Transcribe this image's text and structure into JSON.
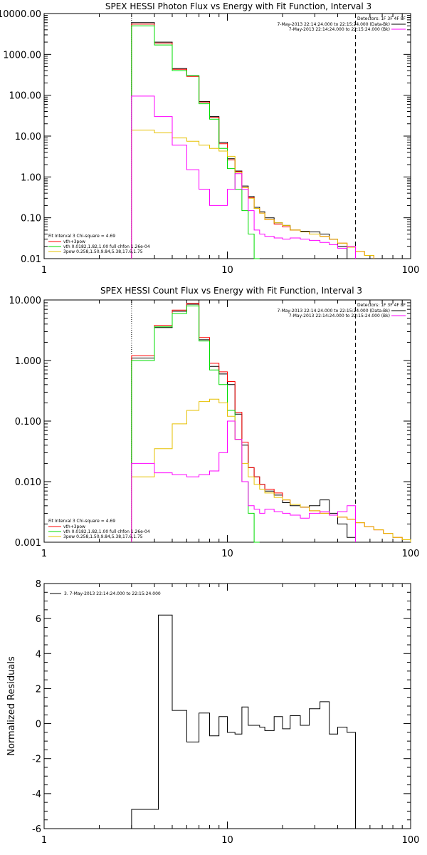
{
  "chart_data": [
    {
      "type": "line",
      "title": "SPEX HESSI Photon Flux vs Energy with Fit Function, Interval 3",
      "xscale": "log",
      "yscale": "log",
      "xlim": [
        1,
        100
      ],
      "ylim": [
        0.01,
        10000
      ],
      "x_ticks": [
        1,
        10,
        100
      ],
      "x_tick_labels": [
        "1",
        "10",
        "100"
      ],
      "y_ticks": [
        0.01,
        0.1,
        1,
        10,
        100,
        1000,
        10000
      ],
      "y_tick_labels": [
        "0.01",
        "0.10",
        "1.00",
        "10.00",
        "100.00",
        "1000.00",
        "10000.00"
      ],
      "legend_right": {
        "header": "Detectors: 1F 3F 4F 8F",
        "entries": [
          {
            "label": "7-May-2013 22:14:24.000 to 22:15:24.000 (Data-Bk)",
            "color": "#000000"
          },
          {
            "label": "7-May-2013 22:14:24.000 to 22:15:24.000 (Bk)",
            "color": "#ff00ff"
          }
        ]
      },
      "legend_left": {
        "header": "Fit Interval 3   Chi-square = 4.69",
        "entries": [
          {
            "label": "vth+3pow",
            "color": "#ff0000"
          },
          {
            "label": "vth 0.0182,1.82,1.00  full chfon 1.26e-04",
            "color": "#00dd00"
          },
          {
            "label": "3pow 0.258,1.50,9.84,5.38,17.6,1.75",
            "color": "#e6c000"
          }
        ]
      },
      "vlines": [
        {
          "x": 3,
          "style": "dotted"
        },
        {
          "x": 50,
          "style": "dashed"
        }
      ],
      "series": [
        {
          "key": "data",
          "color": "#000000",
          "edges": [
            3,
            4,
            5,
            6,
            7,
            8,
            9,
            10,
            11,
            12,
            13,
            14,
            15,
            16,
            18,
            20,
            22,
            25,
            28,
            32,
            36,
            40,
            45,
            50
          ],
          "values": [
            6000,
            2000,
            450,
            300,
            70,
            30,
            7,
            2.8,
            1.4,
            0.6,
            0.33,
            0.18,
            0.14,
            0.1,
            0.075,
            0.065,
            0.05,
            0.047,
            0.045,
            0.04,
            0.03,
            0.02,
            0.01
          ]
        },
        {
          "key": "fit",
          "color": "#ff0000",
          "edges": [
            3,
            4,
            5,
            6,
            7,
            8,
            9,
            10,
            11,
            12,
            13,
            14,
            15,
            16,
            18,
            20,
            22,
            25,
            28,
            32,
            36,
            40,
            45,
            50,
            56,
            63
          ],
          "values": [
            5500,
            1900,
            430,
            290,
            68,
            29,
            6.5,
            2.6,
            1.35,
            0.55,
            0.31,
            0.17,
            0.13,
            0.09,
            0.07,
            0.06,
            0.05,
            0.045,
            0.04,
            0.035,
            0.03,
            0.024,
            0.019,
            0.015,
            0.012
          ]
        },
        {
          "key": "vth",
          "color": "#00dd00",
          "edges": [
            3,
            4,
            5,
            6,
            7,
            8,
            9,
            10,
            11,
            12,
            13,
            14,
            15
          ],
          "values": [
            5000,
            1700,
            400,
            300,
            62,
            26,
            5,
            1.6,
            0.5,
            0.15,
            0.04,
            0.01
          ]
        },
        {
          "key": "3pow",
          "color": "#e6c000",
          "edges": [
            3,
            4,
            5,
            6,
            7,
            8,
            9,
            10,
            11,
            12,
            13,
            14,
            15,
            16,
            18,
            20,
            22,
            25,
            28,
            32,
            36,
            40,
            45,
            50,
            56,
            63
          ],
          "values": [
            14,
            12,
            9,
            7.5,
            6,
            5,
            4.3,
            3.2,
            1.3,
            0.55,
            0.3,
            0.17,
            0.13,
            0.09,
            0.075,
            0.065,
            0.05,
            0.045,
            0.04,
            0.035,
            0.03,
            0.024,
            0.019,
            0.015,
            0.012
          ]
        },
        {
          "key": "bk",
          "color": "#ff00ff",
          "edges": [
            3,
            4,
            5,
            6,
            7,
            8,
            9,
            10,
            11,
            12,
            13,
            14,
            15,
            16,
            18,
            20,
            22,
            25,
            28,
            32,
            36,
            40,
            45,
            50
          ],
          "values": [
            95,
            30,
            6,
            1.5,
            0.5,
            0.2,
            0.2,
            0.5,
            1.2,
            0.5,
            0.15,
            0.05,
            0.04,
            0.035,
            0.032,
            0.03,
            0.032,
            0.03,
            0.028,
            0.025,
            0.022,
            0.018,
            0.02
          ]
        }
      ]
    },
    {
      "type": "line",
      "title": "SPEX HESSI Count Flux vs Energy with Fit Function, Interval 3",
      "xscale": "log",
      "yscale": "log",
      "xlim": [
        1,
        100
      ],
      "ylim": [
        0.001,
        10
      ],
      "x_ticks": [
        1,
        10,
        100
      ],
      "x_tick_labels": [
        "1",
        "10",
        "100"
      ],
      "y_ticks": [
        0.001,
        0.01,
        0.1,
        1,
        10
      ],
      "y_tick_labels": [
        "0.001",
        "0.010",
        "0.100",
        "1.000",
        "10.000"
      ],
      "legend_right": {
        "header": "Detectors: 1F 3F 4F 8F",
        "entries": [
          {
            "label": "7-May-2013 22:14:24.000 to 22:15:24.000 (Data-Bk)",
            "color": "#000000"
          },
          {
            "label": "7-May-2013 22:14:24.000 to 22:15:24.000 (Bk)",
            "color": "#ff00ff"
          }
        ]
      },
      "legend_left": {
        "header": "Fit Interval 3   Chi-square = 4.69",
        "entries": [
          {
            "label": "vth+3pow",
            "color": "#ff0000"
          },
          {
            "label": "vth 0.0182,1.82,1.00  full chfon 1.26e-04",
            "color": "#00dd00"
          },
          {
            "label": "3pow 0.258,1.50,9.84,5.38,17.6,1.75",
            "color": "#e6c000"
          }
        ]
      },
      "vlines": [
        {
          "x": 3,
          "style": "dotted"
        },
        {
          "x": 50,
          "style": "dashed"
        }
      ],
      "series": [
        {
          "key": "data",
          "color": "#000000",
          "edges": [
            3,
            4,
            5,
            6,
            7,
            8,
            9,
            10,
            11,
            12,
            13,
            14,
            15,
            16,
            18,
            20,
            22,
            25,
            28,
            32,
            36,
            40,
            45,
            50
          ],
          "values": [
            1.1,
            3.5,
            6.5,
            8.5,
            2.2,
            0.8,
            0.6,
            0.4,
            0.13,
            0.04,
            0.017,
            0.012,
            0.009,
            0.007,
            0.006,
            0.0045,
            0.004,
            0.0038,
            0.004,
            0.005,
            0.003,
            0.002,
            0.0012
          ]
        },
        {
          "key": "fit",
          "color": "#ff0000",
          "edges": [
            3,
            4,
            5,
            6,
            7,
            8,
            9,
            10,
            11,
            12,
            13,
            14,
            15,
            16,
            18,
            20,
            22,
            25,
            28,
            32,
            36,
            40,
            45,
            50,
            56,
            63,
            71,
            80,
            90,
            100
          ],
          "values": [
            1.2,
            3.8,
            6.8,
            8.8,
            2.4,
            0.9,
            0.65,
            0.45,
            0.14,
            0.045,
            0.017,
            0.012,
            0.009,
            0.0075,
            0.0065,
            0.005,
            0.0042,
            0.0038,
            0.0033,
            0.003,
            0.0028,
            0.0026,
            0.0024,
            0.0021,
            0.0018,
            0.0016,
            0.0014,
            0.0012,
            0.0011
          ]
        },
        {
          "key": "vth",
          "color": "#00dd00",
          "edges": [
            3,
            4,
            5,
            6,
            7,
            8,
            9,
            10,
            11,
            12,
            13,
            14,
            15
          ],
          "values": [
            1.0,
            3.6,
            6.0,
            8.0,
            2.1,
            0.7,
            0.4,
            0.15,
            0.05,
            0.01,
            0.003,
            0.001
          ]
        },
        {
          "key": "3pow",
          "color": "#e6c000",
          "edges": [
            3,
            4,
            5,
            6,
            7,
            8,
            9,
            10,
            11,
            12,
            13,
            14,
            15,
            16,
            18,
            20,
            22,
            25,
            28,
            32,
            36,
            40,
            45,
            50,
            56,
            63,
            71,
            80,
            90,
            100
          ],
          "values": [
            0.012,
            0.035,
            0.09,
            0.15,
            0.21,
            0.23,
            0.2,
            0.12,
            0.05,
            0.02,
            0.012,
            0.009,
            0.0075,
            0.0065,
            0.0055,
            0.005,
            0.0042,
            0.0038,
            0.0033,
            0.003,
            0.0028,
            0.0026,
            0.0024,
            0.0021,
            0.0018,
            0.0016,
            0.0014,
            0.0012,
            0.0011
          ]
        },
        {
          "key": "bk",
          "color": "#ff00ff",
          "edges": [
            3,
            4,
            5,
            6,
            7,
            8,
            9,
            10,
            11,
            12,
            13,
            14,
            15,
            16,
            18,
            20,
            22,
            25,
            28,
            32,
            36,
            40,
            45,
            50
          ],
          "values": [
            0.02,
            0.014,
            0.013,
            0.012,
            0.013,
            0.015,
            0.03,
            0.1,
            0.05,
            0.01,
            0.004,
            0.0035,
            0.003,
            0.0035,
            0.0032,
            0.003,
            0.0028,
            0.0025,
            0.003,
            0.0032,
            0.0028,
            0.0032,
            0.004
          ]
        }
      ]
    },
    {
      "type": "line",
      "xscale": "log",
      "xlim": [
        1,
        100
      ],
      "ylim": [
        -6,
        8
      ],
      "ylabel": "Normalized Residuals",
      "x_ticks": [
        1,
        10,
        100
      ],
      "x_tick_labels": [
        "1",
        "10",
        "100"
      ],
      "y_ticks": [
        -6,
        -4,
        -2,
        0,
        2,
        4,
        6,
        8
      ],
      "y_tick_labels": [
        "-6",
        "-4",
        "-2",
        "0",
        "2",
        "4",
        "6",
        "8"
      ],
      "legend": {
        "entries": [
          {
            "label": "3.  7-May-2013 22:14:24.000 to 22:15:24.000",
            "color": "#000000"
          }
        ]
      },
      "series": [
        {
          "key": "residuals",
          "color": "#000000",
          "edges": [
            3,
            4.2,
            5,
            6,
            7,
            8,
            9,
            10,
            11,
            12,
            13,
            14,
            15,
            16,
            18,
            20,
            22,
            25,
            28,
            32,
            36,
            40,
            45,
            50
          ],
          "values": [
            -4.9,
            6.2,
            0.75,
            -1.05,
            0.6,
            -0.7,
            0.4,
            -0.5,
            -0.6,
            0.95,
            -0.1,
            -0.1,
            -0.2,
            -0.4,
            0.4,
            -0.3,
            0.45,
            -0.1,
            0.85,
            1.25,
            -0.6,
            -0.2,
            -0.5
          ]
        }
      ]
    }
  ]
}
